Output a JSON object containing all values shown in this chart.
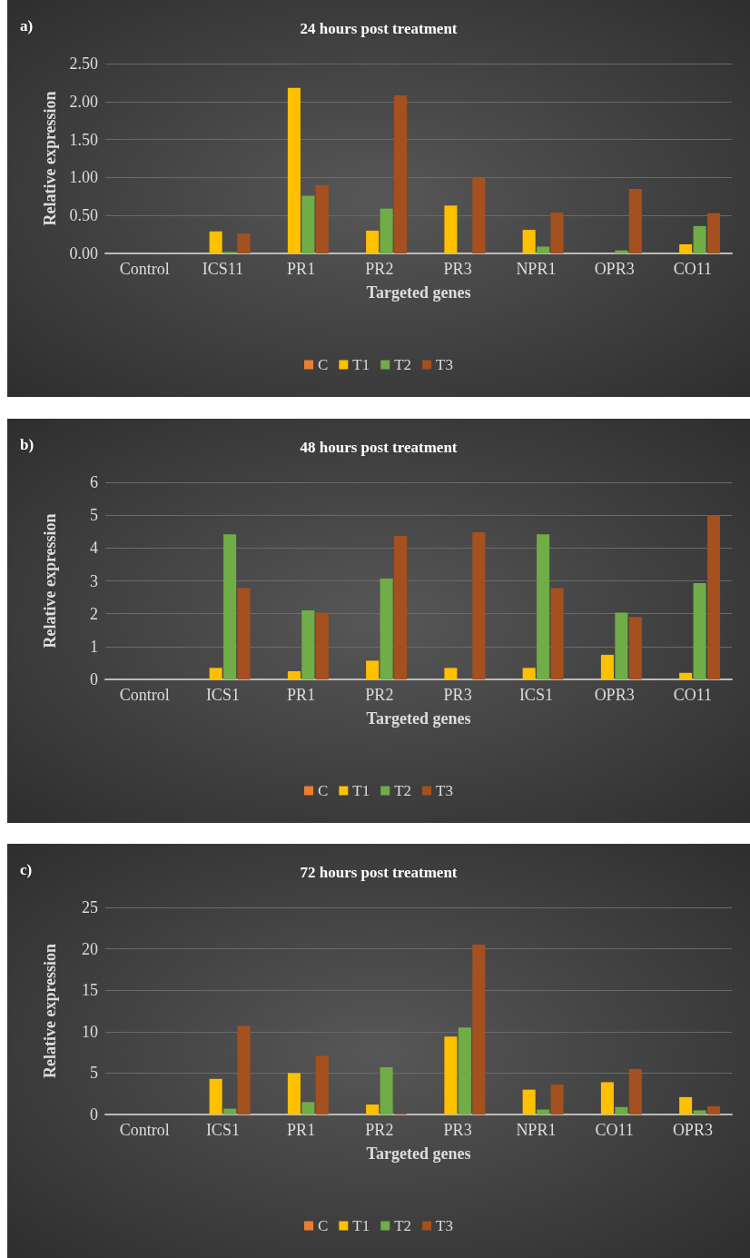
{
  "chart_data": [
    {
      "type": "bar",
      "title": "24 hours post treatment",
      "annotations": [
        "a)"
      ],
      "xlabel": "Targeted genes",
      "ylabel": "Relative expression",
      "categories": [
        "Control",
        "ICS11",
        "PR1",
        "PR2",
        "PR3",
        "NPR1",
        "OPR3",
        "CO11"
      ],
      "ylim": [
        0,
        2.5
      ],
      "yticks": [
        {
          "value": 0,
          "label": "0.00"
        },
        {
          "value": 0.5,
          "label": "0.50"
        },
        {
          "value": 1,
          "label": "1.00"
        },
        {
          "value": 1.5,
          "label": "1.50"
        },
        {
          "value": 2,
          "label": "2.00"
        },
        {
          "value": 2.5,
          "label": "2.50"
        }
      ],
      "grid": "y",
      "legend": "bottom",
      "series": [
        {
          "name": "C",
          "color": "#ed7d31",
          "values": [
            0,
            0,
            0,
            0,
            0,
            0,
            0,
            0
          ]
        },
        {
          "name": "T1",
          "color": "#ffc000",
          "values": [
            0,
            0.29,
            2.18,
            0.3,
            0.63,
            0.31,
            0,
            0.12
          ]
        },
        {
          "name": "T2",
          "color": "#70ad47",
          "values": [
            0,
            0.02,
            0.76,
            0.59,
            0,
            0.09,
            0.04,
            0.36
          ]
        },
        {
          "name": "T3",
          "color": "#a5501f",
          "values": [
            0,
            0.26,
            0.9,
            2.08,
            1.0,
            0.54,
            0.85,
            0.53
          ]
        }
      ]
    },
    {
      "type": "bar",
      "title": "48 hours post treatment",
      "annotations": [
        "b)"
      ],
      "xlabel": "Targeted genes",
      "ylabel": "Relative expression",
      "categories": [
        "Control",
        "ICS1",
        "PR1",
        "PR2",
        "PR3",
        "ICS1",
        "OPR3",
        "CO11"
      ],
      "ylim": [
        0,
        6
      ],
      "yticks": [
        0,
        1,
        2,
        3,
        4,
        5,
        6
      ],
      "grid": "y",
      "legend": "bottom",
      "series": [
        {
          "name": "C",
          "color": "#ed7d31",
          "values": [
            0,
            0,
            0,
            0,
            0,
            0,
            0,
            0
          ]
        },
        {
          "name": "T1",
          "color": "#ffc000",
          "values": [
            0,
            0.35,
            0.25,
            0.57,
            0.35,
            0.35,
            0.75,
            0.2
          ]
        },
        {
          "name": "T2",
          "color": "#70ad47",
          "values": [
            0,
            4.42,
            2.1,
            3.07,
            0,
            4.42,
            2.03,
            2.93
          ]
        },
        {
          "name": "T3",
          "color": "#a5501f",
          "values": [
            0,
            2.78,
            2.03,
            4.37,
            4.48,
            2.78,
            1.9,
            5.0
          ]
        }
      ]
    },
    {
      "type": "bar",
      "title": "72 hours post treatment",
      "annotations": [
        "c)"
      ],
      "xlabel": "Targeted genes",
      "ylabel": "Relative expression",
      "categories": [
        "Control",
        "ICS1",
        "PR1",
        "PR2",
        "PR3",
        "NPR1",
        "CO11",
        "OPR3"
      ],
      "ylim": [
        0,
        25
      ],
      "yticks": [
        0,
        5,
        10,
        15,
        20,
        25
      ],
      "grid": "y",
      "legend": "bottom",
      "series": [
        {
          "name": "C",
          "color": "#ed7d31",
          "values": [
            0,
            0,
            0,
            0,
            0,
            0,
            0,
            0
          ]
        },
        {
          "name": "T1",
          "color": "#ffc000",
          "values": [
            0,
            4.3,
            5.0,
            1.2,
            9.4,
            3.0,
            3.9,
            2.1
          ]
        },
        {
          "name": "T2",
          "color": "#70ad47",
          "values": [
            0,
            0.7,
            1.5,
            5.7,
            10.5,
            0.6,
            0.9,
            0.5
          ]
        },
        {
          "name": "T3",
          "color": "#a5501f",
          "values": [
            0,
            10.7,
            7.1,
            0.1,
            20.5,
            3.6,
            5.5,
            1.0
          ]
        }
      ]
    }
  ]
}
